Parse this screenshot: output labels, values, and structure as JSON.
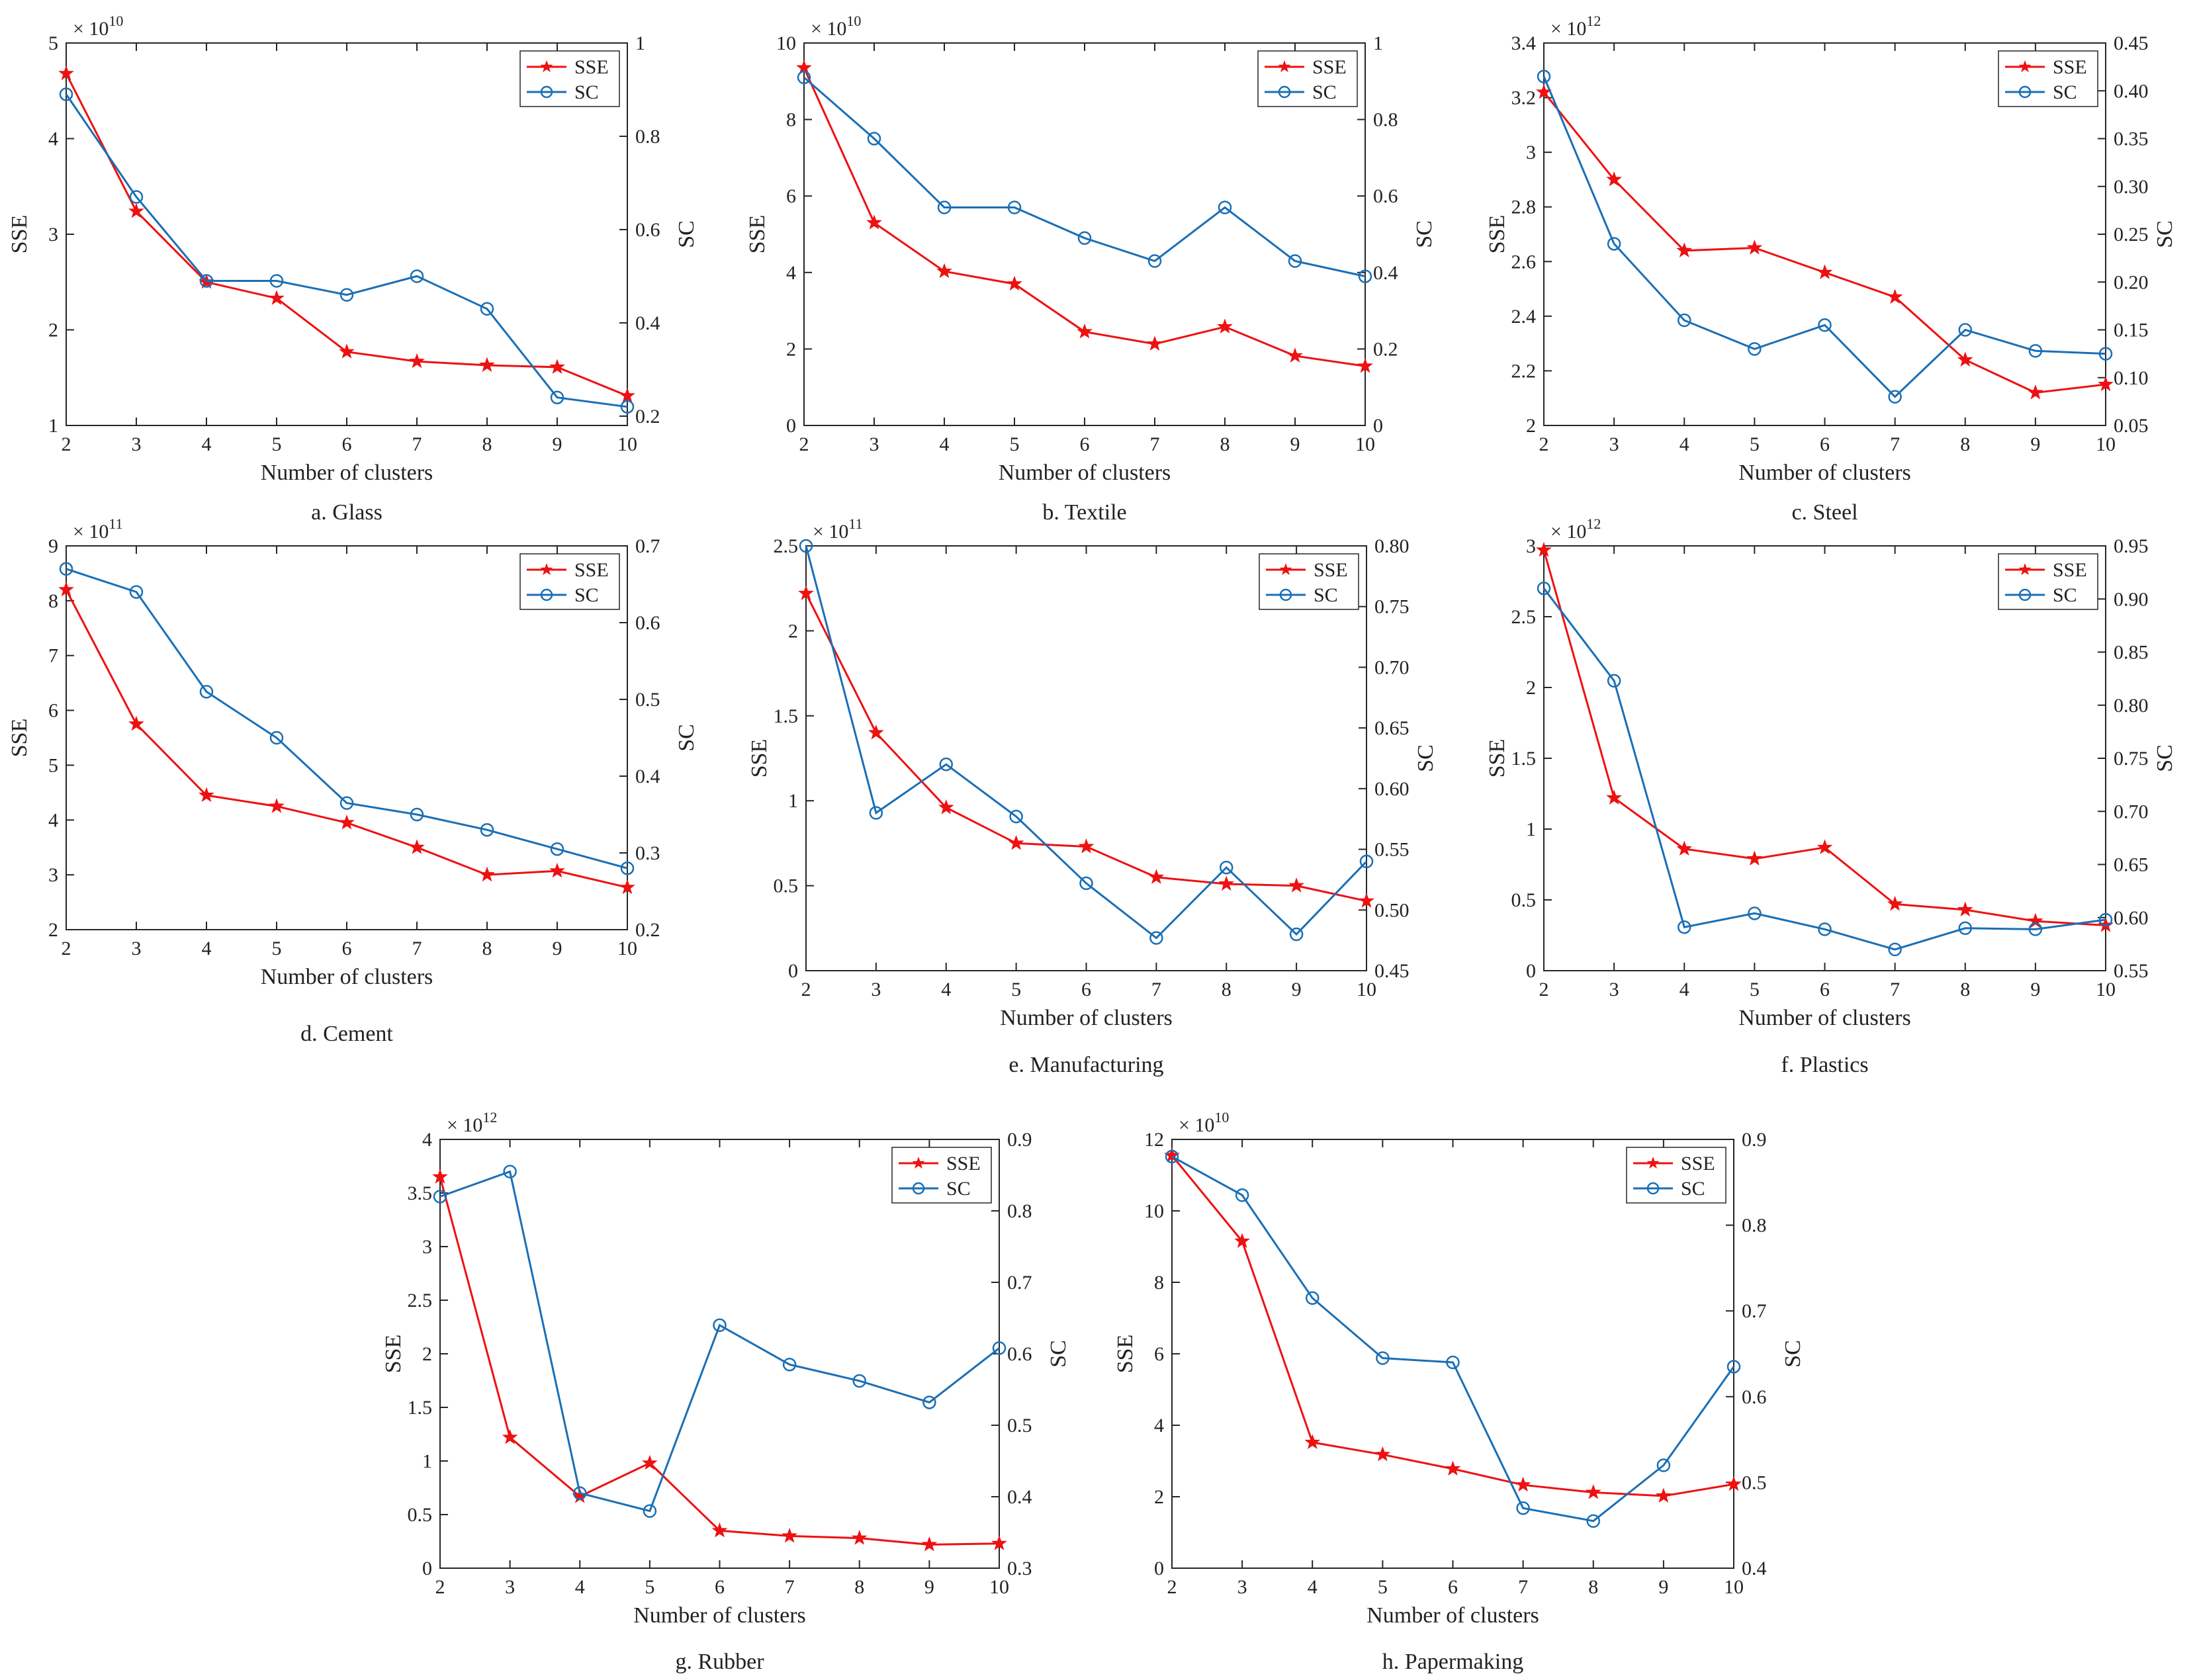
{
  "colors": {
    "sse": "#ee1111",
    "sc": "#1a6fb5",
    "axis": "#262626"
  },
  "chart_data": [
    {
      "type": "line",
      "caption": "a. Glass",
      "xlabel": "Number of clusters",
      "ylabel": "SSE",
      "ylabel2": "SC",
      "x": [
        2,
        3,
        4,
        5,
        6,
        7,
        8,
        9,
        10
      ],
      "xticks": [
        "2",
        "3",
        "4",
        "5",
        "6",
        "7",
        "8",
        "9",
        "10"
      ],
      "ylim": [
        1,
        5
      ],
      "yticks": [
        "1",
        "2",
        "3",
        "4",
        "5"
      ],
      "multiplier": "10",
      "exponent": "10",
      "y2lim": [
        0.18,
        1.0
      ],
      "y2ticks": [
        "0.2",
        "0.4",
        "0.6",
        "0.8",
        "1"
      ],
      "series": [
        {
          "name": "SSE",
          "axis": "left",
          "values": [
            4.68,
            3.24,
            2.5,
            2.33,
            1.77,
            1.67,
            1.63,
            1.61,
            1.31
          ]
        },
        {
          "name": "SC",
          "axis": "right",
          "values": [
            0.89,
            0.67,
            0.49,
            0.49,
            0.46,
            0.5,
            0.43,
            0.24,
            0.22
          ]
        }
      ]
    },
    {
      "type": "line",
      "caption": "b. Textile",
      "xlabel": "Number of clusters",
      "ylabel": "SSE",
      "ylabel2": "SC",
      "x": [
        2,
        3,
        4,
        5,
        6,
        7,
        8,
        9,
        10
      ],
      "xticks": [
        "2",
        "3",
        "4",
        "5",
        "6",
        "7",
        "8",
        "9",
        "10"
      ],
      "ylim": [
        0,
        10
      ],
      "yticks": [
        "0",
        "2",
        "4",
        "6",
        "8",
        "10"
      ],
      "multiplier": "10",
      "exponent": "10",
      "y2lim": [
        0,
        1.0
      ],
      "y2ticks": [
        "0",
        "0.2",
        "0.4",
        "0.6",
        "0.8",
        "1"
      ],
      "series": [
        {
          "name": "SSE",
          "axis": "left",
          "values": [
            9.35,
            5.3,
            4.03,
            3.7,
            2.45,
            2.13,
            2.58,
            1.82,
            1.55
          ]
        },
        {
          "name": "SC",
          "axis": "right",
          "values": [
            0.91,
            0.75,
            0.57,
            0.57,
            0.49,
            0.43,
            0.57,
            0.43,
            0.39
          ]
        }
      ]
    },
    {
      "type": "line",
      "caption": "c. Steel",
      "xlabel": "Number of clusters",
      "ylabel": "SSE",
      "ylabel2": "SC",
      "x": [
        2,
        3,
        4,
        5,
        6,
        7,
        8,
        9,
        10
      ],
      "xticks": [
        "2",
        "3",
        "4",
        "5",
        "6",
        "7",
        "8",
        "9",
        "10"
      ],
      "ylim": [
        2,
        3.4
      ],
      "yticks": [
        "2",
        "2.2",
        "2.4",
        "2.6",
        "2.8",
        "3",
        "3.2",
        "3.4"
      ],
      "multiplier": "10",
      "exponent": "12",
      "y2lim": [
        0.05,
        0.45
      ],
      "y2ticks": [
        "0.05",
        "0.10",
        "0.15",
        "0.20",
        "0.25",
        "0.30",
        "0.35",
        "0.40",
        "0.45"
      ],
      "series": [
        {
          "name": "SSE",
          "axis": "left",
          "values": [
            3.22,
            2.9,
            2.64,
            2.65,
            2.56,
            2.47,
            2.24,
            2.12,
            2.15
          ]
        },
        {
          "name": "SC",
          "axis": "right",
          "values": [
            0.415,
            0.24,
            0.16,
            0.13,
            0.155,
            0.08,
            0.15,
            0.128,
            0.125
          ]
        }
      ]
    },
    {
      "type": "line",
      "caption": "d. Cement",
      "xlabel": "Number of clusters",
      "ylabel": "SSE",
      "ylabel2": "SC",
      "x": [
        2,
        3,
        4,
        5,
        6,
        7,
        8,
        9,
        10
      ],
      "xticks": [
        "2",
        "3",
        "4",
        "5",
        "6",
        "7",
        "8",
        "9",
        "10"
      ],
      "ylim": [
        2,
        9
      ],
      "yticks": [
        "2",
        "3",
        "4",
        "5",
        "6",
        "7",
        "8",
        "9"
      ],
      "multiplier": "10",
      "exponent": "11",
      "y2lim": [
        0.2,
        0.7
      ],
      "y2ticks": [
        "0.2",
        "0.3",
        "0.4",
        "0.5",
        "0.6",
        "0.7"
      ],
      "series": [
        {
          "name": "SSE",
          "axis": "left",
          "values": [
            8.2,
            5.75,
            4.45,
            4.25,
            3.95,
            3.5,
            3.0,
            3.07,
            2.77
          ]
        },
        {
          "name": "SC",
          "axis": "right",
          "values": [
            0.67,
            0.64,
            0.51,
            0.45,
            0.365,
            0.35,
            0.33,
            0.305,
            0.28
          ]
        }
      ]
    },
    {
      "type": "line",
      "caption": "e. Manufacturing",
      "xlabel": "Number of clusters",
      "ylabel": "SSE",
      "ylabel2": "SC",
      "x": [
        2,
        3,
        4,
        5,
        6,
        7,
        8,
        9,
        10
      ],
      "xticks": [
        "2",
        "3",
        "4",
        "5",
        "6",
        "7",
        "8",
        "9",
        "10"
      ],
      "ylim": [
        0,
        2.5
      ],
      "yticks": [
        "0",
        "0.5",
        "1",
        "1.5",
        "2",
        "2.5"
      ],
      "multiplier": "10",
      "exponent": "11",
      "y2lim": [
        0.45,
        0.8
      ],
      "y2ticks": [
        "0.45",
        "0.50",
        "0.55",
        "0.60",
        "0.65",
        "0.70",
        "0.75",
        "0.80"
      ],
      "series": [
        {
          "name": "SSE",
          "axis": "left",
          "values": [
            2.22,
            1.4,
            0.96,
            0.75,
            0.73,
            0.55,
            0.51,
            0.5,
            0.41
          ]
        },
        {
          "name": "SC",
          "axis": "right",
          "values": [
            0.8,
            0.58,
            0.62,
            0.577,
            0.522,
            0.477,
            0.535,
            0.48,
            0.54
          ]
        }
      ]
    },
    {
      "type": "line",
      "caption": "f. Plastics",
      "xlabel": "Number of clusters",
      "ylabel": "SSE",
      "ylabel2": "SC",
      "x": [
        2,
        3,
        4,
        5,
        6,
        7,
        8,
        9,
        10
      ],
      "xticks": [
        "2",
        "3",
        "4",
        "5",
        "6",
        "7",
        "8",
        "9",
        "10"
      ],
      "ylim": [
        0,
        3
      ],
      "yticks": [
        "0",
        "0.5",
        "1",
        "1.5",
        "2",
        "2.5",
        "3"
      ],
      "multiplier": "10",
      "exponent": "12",
      "y2lim": [
        0.55,
        0.95
      ],
      "y2ticks": [
        "0.55",
        "0.60",
        "0.65",
        "0.70",
        "0.75",
        "0.80",
        "0.85",
        "0.90",
        "0.95"
      ],
      "series": [
        {
          "name": "SSE",
          "axis": "left",
          "values": [
            2.97,
            1.22,
            0.86,
            0.79,
            0.87,
            0.47,
            0.43,
            0.35,
            0.32
          ]
        },
        {
          "name": "SC",
          "axis": "right",
          "values": [
            0.91,
            0.823,
            0.591,
            0.604,
            0.589,
            0.57,
            0.59,
            0.589,
            0.598
          ]
        }
      ]
    },
    {
      "type": "line",
      "caption": "g. Rubber",
      "xlabel": "Number of clusters",
      "ylabel": "SSE",
      "ylabel2": "SC",
      "x": [
        2,
        3,
        4,
        5,
        6,
        7,
        8,
        9,
        10
      ],
      "xticks": [
        "2",
        "3",
        "4",
        "5",
        "6",
        "7",
        "8",
        "9",
        "10"
      ],
      "ylim": [
        0,
        4
      ],
      "yticks": [
        "0",
        "0.5",
        "1",
        "1.5",
        "2",
        "2.5",
        "3",
        "3.5",
        "4"
      ],
      "multiplier": "10",
      "exponent": "12",
      "y2lim": [
        0.3,
        0.9
      ],
      "y2ticks": [
        "0.3",
        "0.4",
        "0.5",
        "0.6",
        "0.7",
        "0.8",
        "0.9"
      ],
      "series": [
        {
          "name": "SSE",
          "axis": "left",
          "values": [
            3.65,
            1.22,
            0.67,
            0.98,
            0.35,
            0.3,
            0.28,
            0.22,
            0.23
          ]
        },
        {
          "name": "SC",
          "axis": "right",
          "values": [
            0.82,
            0.855,
            0.405,
            0.38,
            0.64,
            0.585,
            0.562,
            0.532,
            0.608
          ]
        }
      ]
    },
    {
      "type": "line",
      "caption": "h. Papermaking",
      "xlabel": "Number of clusters",
      "ylabel": "SSE",
      "ylabel2": "SC",
      "x": [
        2,
        3,
        4,
        5,
        6,
        7,
        8,
        9,
        10
      ],
      "xticks": [
        "2",
        "3",
        "4",
        "5",
        "6",
        "7",
        "8",
        "9",
        "10"
      ],
      "ylim": [
        0,
        12
      ],
      "yticks": [
        "0",
        "2",
        "4",
        "6",
        "8",
        "10",
        "12"
      ],
      "multiplier": "10",
      "exponent": "10",
      "y2lim": [
        0.4,
        0.9
      ],
      "y2ticks": [
        "0.4",
        "0.5",
        "0.6",
        "0.7",
        "0.8",
        "0.9"
      ],
      "series": [
        {
          "name": "SSE",
          "axis": "left",
          "values": [
            11.55,
            9.15,
            3.52,
            3.18,
            2.78,
            2.33,
            2.12,
            2.02,
            2.35
          ]
        },
        {
          "name": "SC",
          "axis": "right",
          "values": [
            0.88,
            0.835,
            0.715,
            0.645,
            0.64,
            0.47,
            0.455,
            0.52,
            0.635
          ]
        }
      ]
    }
  ]
}
